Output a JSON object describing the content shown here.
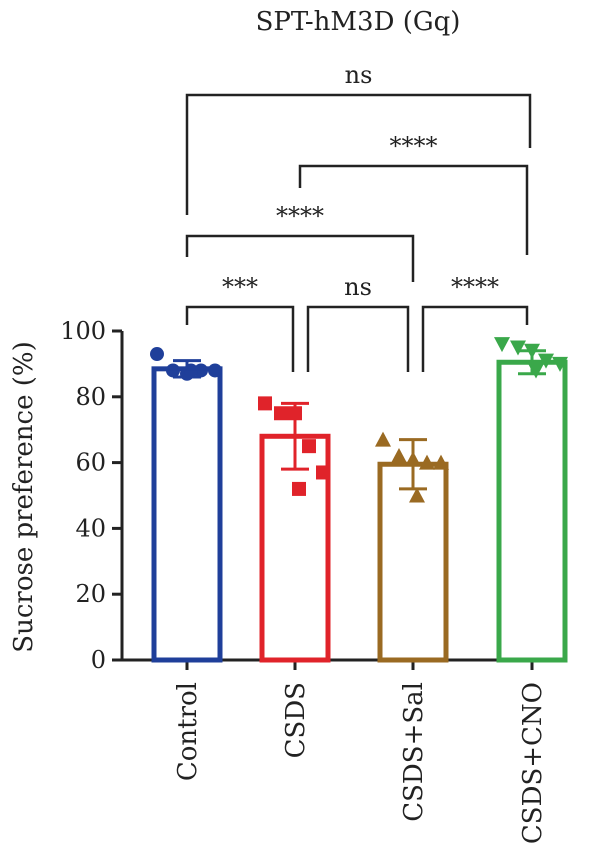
{
  "chart_data": {
    "type": "bar",
    "title": "SPT-hM3D (Gq)",
    "ylabel": "Sucrose preference (%)",
    "xlabel": "",
    "ylim": [
      0,
      100
    ],
    "yticks": [
      0,
      20,
      40,
      60,
      80,
      100
    ],
    "grid": false,
    "categories": [
      "Control",
      "CSDS",
      "CSDS+Sal",
      "CSDS+CNO"
    ],
    "series": [
      {
        "name": "",
        "values": [
          88.5,
          68,
          59.5,
          90.5
        ],
        "error": [
          2.5,
          10,
          7.5,
          3.5
        ],
        "colors": [
          "#1f3f9a",
          "#e0232a",
          "#9a6a22",
          "#3aa84a"
        ],
        "marker": [
          "circle",
          "square",
          "triangle-up",
          "triangle-down"
        ],
        "points": [
          [
            93,
            88,
            87,
            88,
            88,
            88
          ],
          [
            78,
            75,
            75,
            65,
            57,
            52
          ],
          [
            67,
            62,
            61,
            60,
            60,
            50
          ],
          [
            96,
            95,
            94,
            91,
            90,
            88
          ]
        ]
      }
    ],
    "comparisons": [
      {
        "from": "Control",
        "to": "CSDS",
        "label": "***"
      },
      {
        "from": "CSDS",
        "to": "CSDS+Sal",
        "label": "ns"
      },
      {
        "from": "CSDS+Sal",
        "to": "CSDS+CNO",
        "label": "****"
      },
      {
        "from": "Control",
        "to": "CSDS+Sal",
        "label": "****"
      },
      {
        "from": "CSDS",
        "to": "CSDS+CNO",
        "label": "****"
      },
      {
        "from": "Control",
        "to": "CSDS+CNO",
        "label": "ns"
      }
    ]
  }
}
